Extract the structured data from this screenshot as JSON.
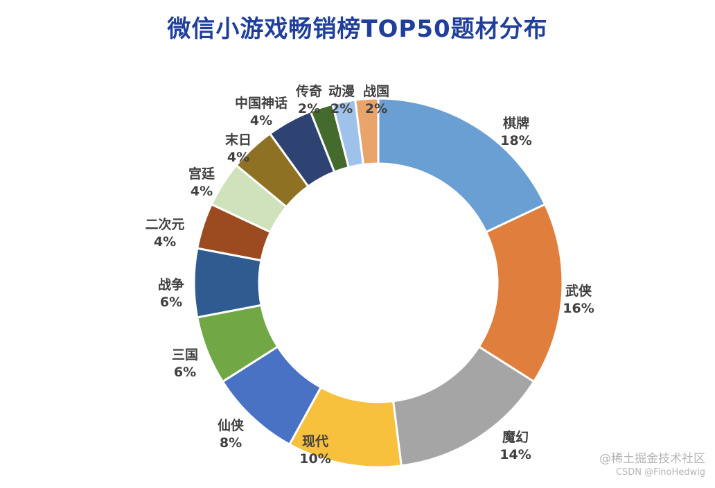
{
  "chart_data": {
    "type": "pie",
    "variant": "donut",
    "title": "微信小游戏畅销榜TOP50题材分布",
    "categories": [
      "棋牌",
      "武侠",
      "魔幻",
      "现代",
      "仙侠",
      "三国",
      "战争",
      "二次元",
      "宫廷",
      "末日",
      "中国神话",
      "传奇",
      "动漫",
      "战国"
    ],
    "values": [
      18,
      16,
      14,
      10,
      8,
      6,
      6,
      4,
      4,
      4,
      4,
      2,
      2,
      2
    ],
    "value_labels": [
      "18%",
      "16%",
      "14%",
      "10%",
      "8%",
      "6%",
      "6%",
      "4%",
      "4%",
      "4%",
      "4%",
      "2%",
      "2%",
      "2%"
    ],
    "colors": [
      "#6a9fd4",
      "#e07f3d",
      "#a5a5a5",
      "#f7c03d",
      "#4a72c4",
      "#71a845",
      "#2f5b91",
      "#9c4b20",
      "#cfe2bb",
      "#8f7123",
      "#2f4373",
      "#456a2d",
      "#9fc2ea",
      "#e9a46b"
    ],
    "legend": "none"
  },
  "watermark": {
    "line1": "@稀土掘金技术社区",
    "line2": "CSDN @FinoHedwig"
  }
}
